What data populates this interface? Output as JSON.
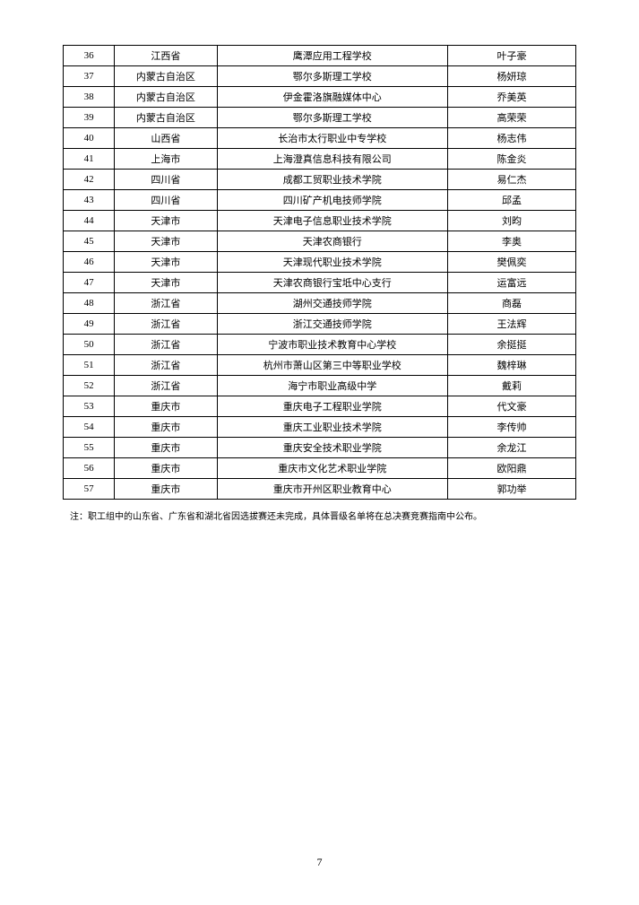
{
  "table": {
    "rows": [
      {
        "num": "36",
        "province": "江西省",
        "school": "鹰潭应用工程学校",
        "name": "叶子豪"
      },
      {
        "num": "37",
        "province": "内蒙古自治区",
        "school": "鄂尔多斯理工学校",
        "name": "杨妍琼"
      },
      {
        "num": "38",
        "province": "内蒙古自治区",
        "school": "伊金霍洛旗融媒体中心",
        "name": "乔美英"
      },
      {
        "num": "39",
        "province": "内蒙古自治区",
        "school": "鄂尔多斯理工学校",
        "name": "高荣荣"
      },
      {
        "num": "40",
        "province": "山西省",
        "school": "长治市太行职业中专学校",
        "name": "杨志伟"
      },
      {
        "num": "41",
        "province": "上海市",
        "school": "上海澄真信息科技有限公司",
        "name": "陈金炎"
      },
      {
        "num": "42",
        "province": "四川省",
        "school": "成都工贸职业技术学院",
        "name": "易仁杰"
      },
      {
        "num": "43",
        "province": "四川省",
        "school": "四川矿产机电技师学院",
        "name": "邱孟"
      },
      {
        "num": "44",
        "province": "天津市",
        "school": "天津电子信息职业技术学院",
        "name": "刘昀"
      },
      {
        "num": "45",
        "province": "天津市",
        "school": "天津农商银行",
        "name": "李奥"
      },
      {
        "num": "46",
        "province": "天津市",
        "school": "天津现代职业技术学院",
        "name": "樊佩奕"
      },
      {
        "num": "47",
        "province": "天津市",
        "school": "天津农商银行宝坻中心支行",
        "name": "运富远"
      },
      {
        "num": "48",
        "province": "浙江省",
        "school": "湖州交通技师学院",
        "name": "商磊"
      },
      {
        "num": "49",
        "province": "浙江省",
        "school": "浙江交通技师学院",
        "name": "王法辉"
      },
      {
        "num": "50",
        "province": "浙江省",
        "school": "宁波市职业技术教育中心学校",
        "name": "余挺挺"
      },
      {
        "num": "51",
        "province": "浙江省",
        "school": "杭州市萧山区第三中等职业学校",
        "name": "魏梓琳"
      },
      {
        "num": "52",
        "province": "浙江省",
        "school": "海宁市职业高级中学",
        "name": "戴莉"
      },
      {
        "num": "53",
        "province": "重庆市",
        "school": "重庆电子工程职业学院",
        "name": "代文豪"
      },
      {
        "num": "54",
        "province": "重庆市",
        "school": "重庆工业职业技术学院",
        "name": "李传帅"
      },
      {
        "num": "55",
        "province": "重庆市",
        "school": "重庆安全技术职业学院",
        "name": "余龙江"
      },
      {
        "num": "56",
        "province": "重庆市",
        "school": "重庆市文化艺术职业学院",
        "name": "欧阳鼎"
      },
      {
        "num": "57",
        "province": "重庆市",
        "school": "重庆市开州区职业教育中心",
        "name": "郭功举"
      }
    ]
  },
  "note": "注：职工组中的山东省、广东省和湖北省因选拔赛还未完成，具体晋级名单将在总决赛竞赛指南中公布。",
  "pageNumber": "7",
  "colors": {
    "background": "#f5f5f5",
    "page": "#ffffff",
    "border": "#000000",
    "text": "#000000"
  }
}
